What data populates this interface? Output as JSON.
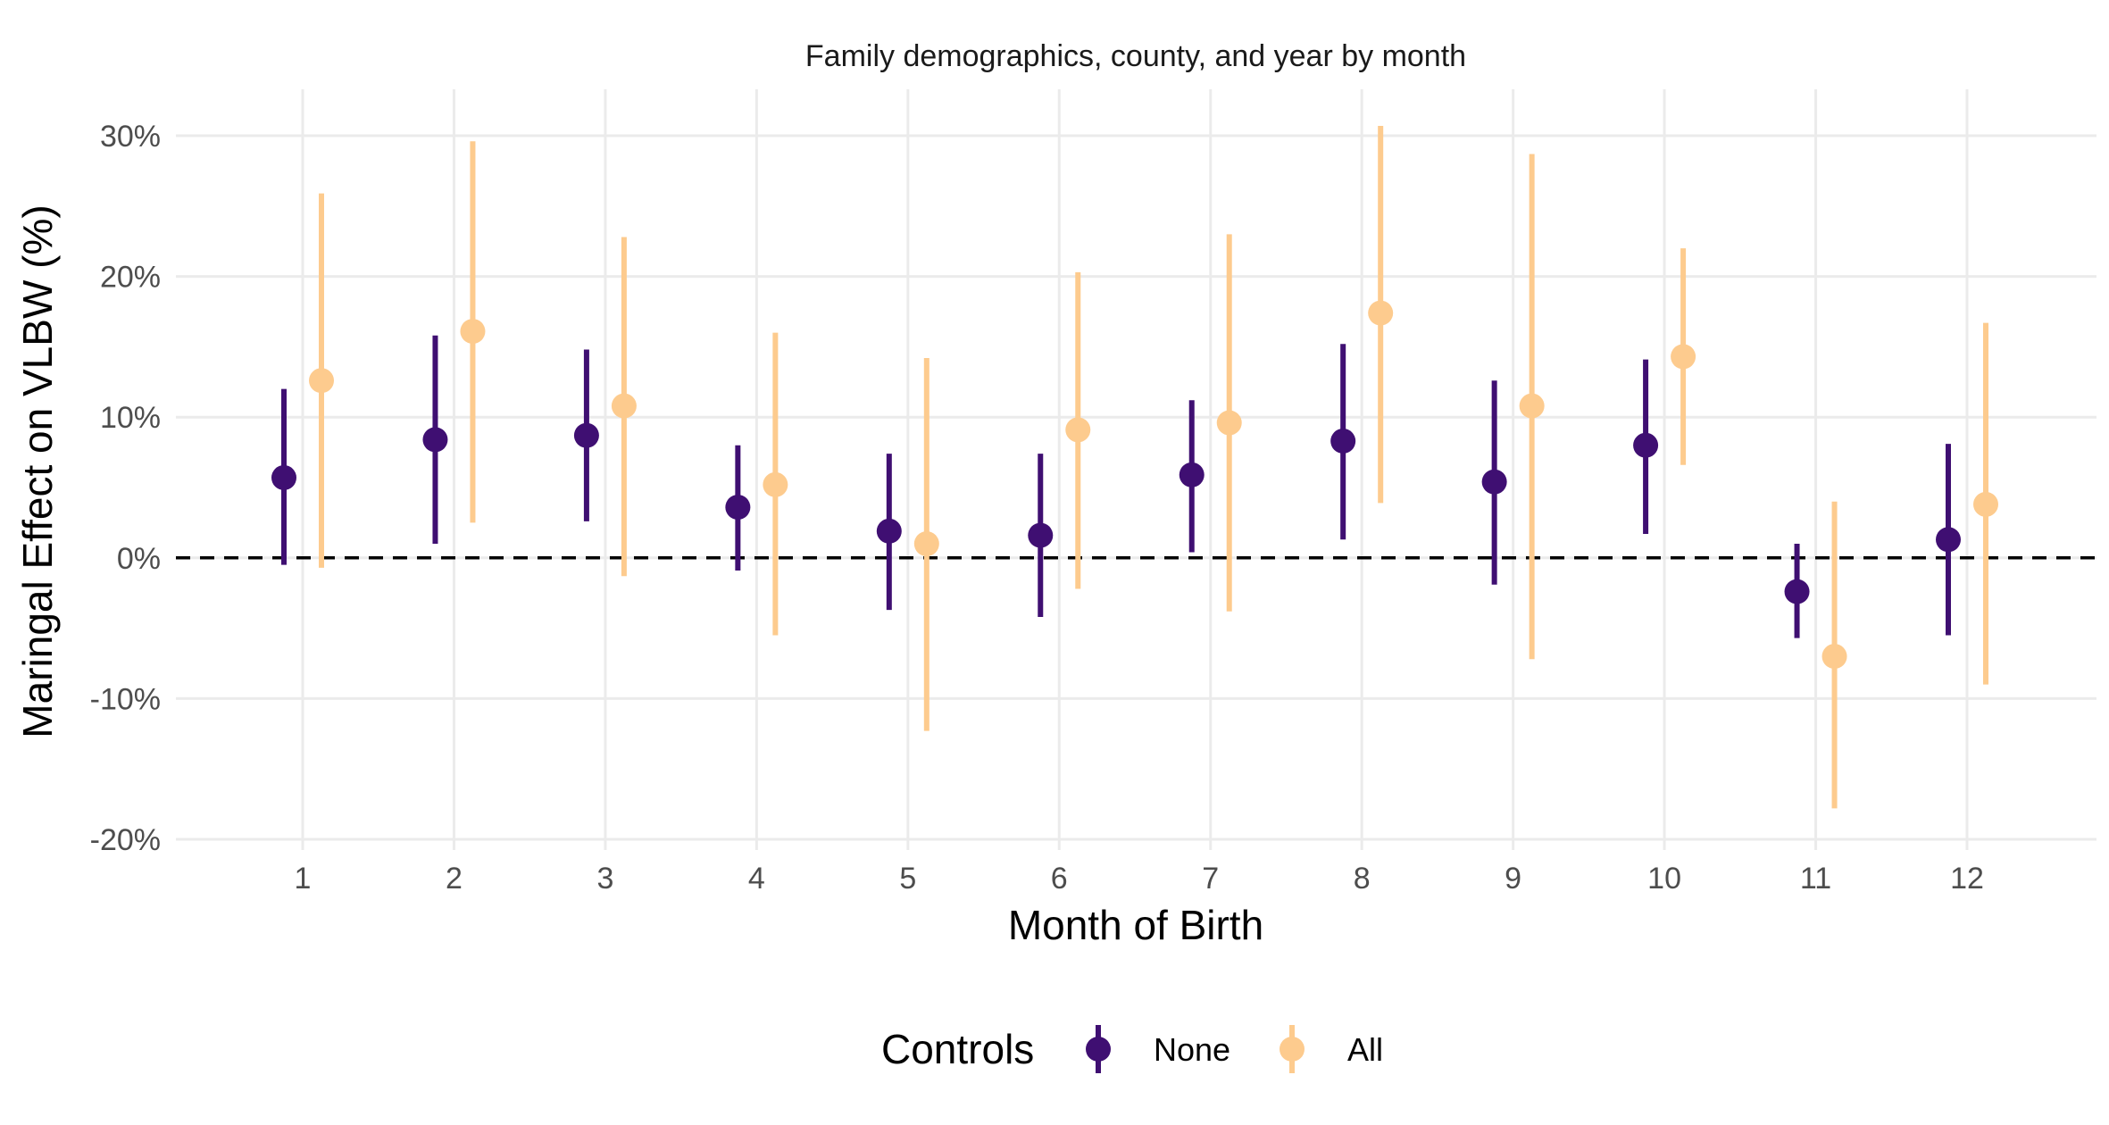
{
  "chart_data": {
    "type": "scatter",
    "title": "Family demographics, county, and year by month",
    "xlabel": "Month of Birth",
    "ylabel": "Maringal Effect on VLBW (%)",
    "categories": [
      "1",
      "2",
      "3",
      "4",
      "5",
      "6",
      "7",
      "8",
      "9",
      "10",
      "11",
      "12"
    ],
    "y_ticks": [
      "30%",
      "20%",
      "10%",
      "0%",
      "-10%",
      "-20%"
    ],
    "y_tick_values": [
      30,
      20,
      10,
      0,
      -10,
      -20
    ],
    "ylim": [
      -20,
      30
    ],
    "reference_line": 0,
    "grid": true,
    "legend": {
      "title": "Controls",
      "position": "bottom"
    },
    "series": [
      {
        "name": "None",
        "color": "#3f0f72",
        "values": [
          5.7,
          8.4,
          8.7,
          3.6,
          1.9,
          1.6,
          5.9,
          8.3,
          5.4,
          8.0,
          -2.4,
          1.3
        ],
        "lower": [
          -0.5,
          1.0,
          2.6,
          -0.9,
          -3.7,
          -4.2,
          0.4,
          1.3,
          -1.9,
          1.7,
          -5.7,
          -5.5
        ],
        "upper": [
          12.0,
          15.8,
          14.8,
          8.0,
          7.4,
          7.4,
          11.2,
          15.2,
          12.6,
          14.1,
          1.0,
          8.1
        ]
      },
      {
        "name": "All",
        "color": "#fdcb8e",
        "values": [
          12.6,
          16.1,
          10.8,
          5.2,
          1.0,
          9.1,
          9.6,
          17.4,
          10.8,
          14.3,
          -7.0,
          3.8
        ],
        "lower": [
          -0.7,
          2.5,
          -1.3,
          -5.5,
          -12.3,
          -2.2,
          -3.8,
          3.9,
          -7.2,
          6.6,
          -17.8,
          -9.0
        ],
        "upper": [
          25.9,
          29.6,
          22.8,
          16.0,
          14.2,
          20.3,
          23.0,
          30.7,
          28.7,
          22.0,
          4.0,
          16.7
        ]
      }
    ]
  }
}
